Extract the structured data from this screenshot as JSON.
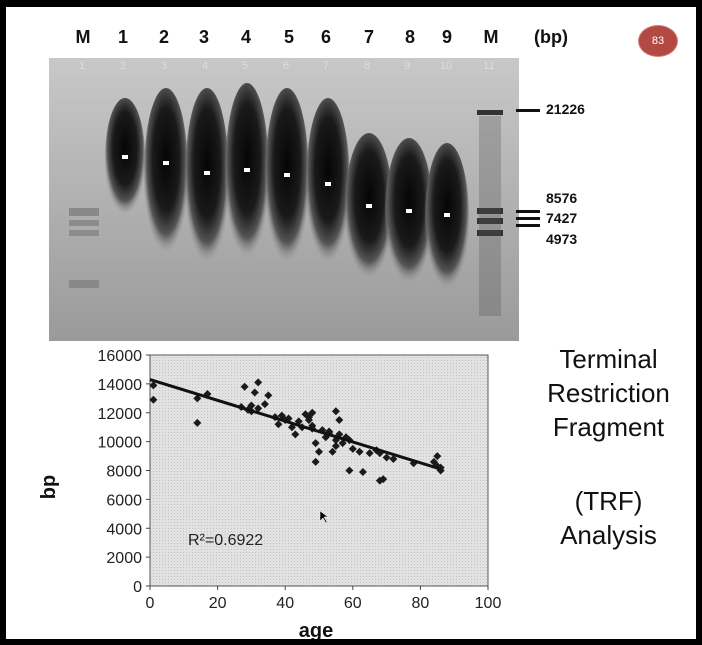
{
  "badge": "83",
  "gel": {
    "lane_labels": [
      "M",
      "1",
      "2",
      "3",
      "4",
      "5",
      "6",
      "7",
      "8",
      "9",
      "M"
    ],
    "lane_numbers": [
      "1",
      "2",
      "3",
      "4",
      "5",
      "6",
      "7",
      "8",
      "9",
      "10",
      "11"
    ],
    "unit_label": "(bp)",
    "marker_labels": [
      "21226",
      "8576",
      "7427",
      "4973"
    ]
  },
  "title": {
    "lines": [
      "Terminal",
      "Restriction",
      "Fragment"
    ],
    "abbr": [
      "(TRF)",
      "Analysis"
    ]
  },
  "chart_data": {
    "type": "scatter",
    "xlabel": "age",
    "ylabel": "bp",
    "xlim": [
      0,
      100
    ],
    "ylim": [
      0,
      16000
    ],
    "x_ticks": [
      "0",
      "20",
      "40",
      "60",
      "80",
      "100"
    ],
    "y_ticks": [
      "0",
      "2000",
      "4000",
      "6000",
      "8000",
      "10000",
      "12000",
      "14000",
      "16000"
    ],
    "annotation": "R²=0.6922",
    "trendline": {
      "x": [
        0,
        86
      ],
      "y": [
        14300,
        8100
      ]
    },
    "points": [
      [
        1,
        13900
      ],
      [
        1,
        12900
      ],
      [
        14,
        11300
      ],
      [
        14,
        13000
      ],
      [
        17,
        13300
      ],
      [
        27,
        12400
      ],
      [
        28,
        13800
      ],
      [
        29,
        12200
      ],
      [
        30,
        12500
      ],
      [
        30,
        12100
      ],
      [
        31,
        13400
      ],
      [
        32,
        12300
      ],
      [
        32,
        14100
      ],
      [
        34,
        12600
      ],
      [
        35,
        13200
      ],
      [
        37,
        11700
      ],
      [
        38,
        11200
      ],
      [
        39,
        11800
      ],
      [
        40,
        11500
      ],
      [
        41,
        11600
      ],
      [
        42,
        11000
      ],
      [
        43,
        10500
      ],
      [
        44,
        11400
      ],
      [
        45,
        11000
      ],
      [
        46,
        11900
      ],
      [
        47,
        11700
      ],
      [
        47,
        11500
      ],
      [
        48,
        12000
      ],
      [
        48,
        11100
      ],
      [
        48,
        10900
      ],
      [
        49,
        9900
      ],
      [
        49,
        8600
      ],
      [
        50,
        9300
      ],
      [
        51,
        10800
      ],
      [
        52,
        10300
      ],
      [
        53,
        10700
      ],
      [
        53,
        10600
      ],
      [
        54,
        9300
      ],
      [
        55,
        10100
      ],
      [
        55,
        9700
      ],
      [
        55,
        12100
      ],
      [
        56,
        11500
      ],
      [
        56,
        10500
      ],
      [
        57,
        9900
      ],
      [
        58,
        10300
      ],
      [
        59,
        10100
      ],
      [
        59,
        8000
      ],
      [
        60,
        9500
      ],
      [
        62,
        9300
      ],
      [
        63,
        7900
      ],
      [
        65,
        9200
      ],
      [
        67,
        9400
      ],
      [
        68,
        9200
      ],
      [
        68,
        7300
      ],
      [
        69,
        7400
      ],
      [
        70,
        8900
      ],
      [
        72,
        8800
      ],
      [
        78,
        8500
      ],
      [
        84,
        8600
      ],
      [
        85,
        9000
      ],
      [
        85,
        8300
      ],
      [
        86,
        8200
      ],
      [
        86,
        8000
      ]
    ]
  }
}
